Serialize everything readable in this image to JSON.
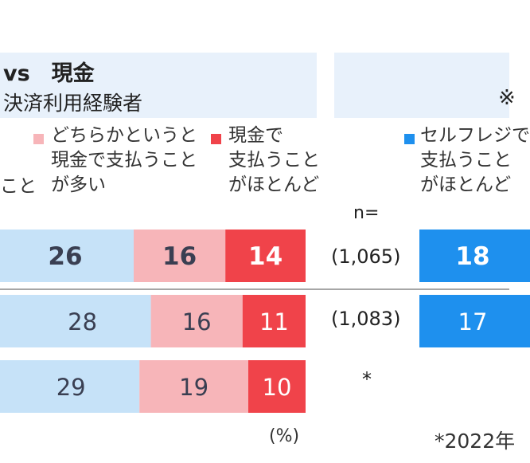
{
  "left_panel": {
    "title": "vs　現金",
    "subtitle": "決済利用経験者"
  },
  "right_panel": {
    "note": "※"
  },
  "legend": {
    "cut_left": "こと",
    "item_light_pink": "どちらかというと\n現金で支払うこと\nが多い",
    "item_red": "現金で\n支払うこと\nがほとんど",
    "item_blue": "セルフレジで\n支払うこと\nがほとんど"
  },
  "n_header": "n=",
  "n_values": [
    "(1,065)",
    "(1,083)"
  ],
  "asterisk": "*",
  "unit": "(%)",
  "footnote": "*2022年",
  "colors": {
    "light_blue": "#c6e2f8",
    "light_pink": "#f7b5b9",
    "red": "#f0434a",
    "blue": "#1e90ee",
    "panel": "#e8f1fb",
    "text_dark": "#3a3f52"
  },
  "chart_data": {
    "type": "bar",
    "orientation": "horizontal-stacked",
    "categories": [
      "row1",
      "row2",
      "row3"
    ],
    "series": [
      {
        "name": "",
        "color": "light_blue",
        "values": [
          26,
          28,
          29
        ]
      },
      {
        "name": "どちらかというと現金で支払うことが多い",
        "color": "light_pink",
        "values": [
          16,
          16,
          19
        ]
      },
      {
        "name": "現金で支払うことがほとんど",
        "color": "red",
        "values": [
          14,
          11,
          10
        ]
      },
      {
        "name": "セルフレジで支払うことがほとんど",
        "color": "blue",
        "values": [
          18,
          17,
          null
        ]
      }
    ],
    "bold_rows": [
      true,
      false,
      false
    ],
    "unit": "(%)"
  }
}
